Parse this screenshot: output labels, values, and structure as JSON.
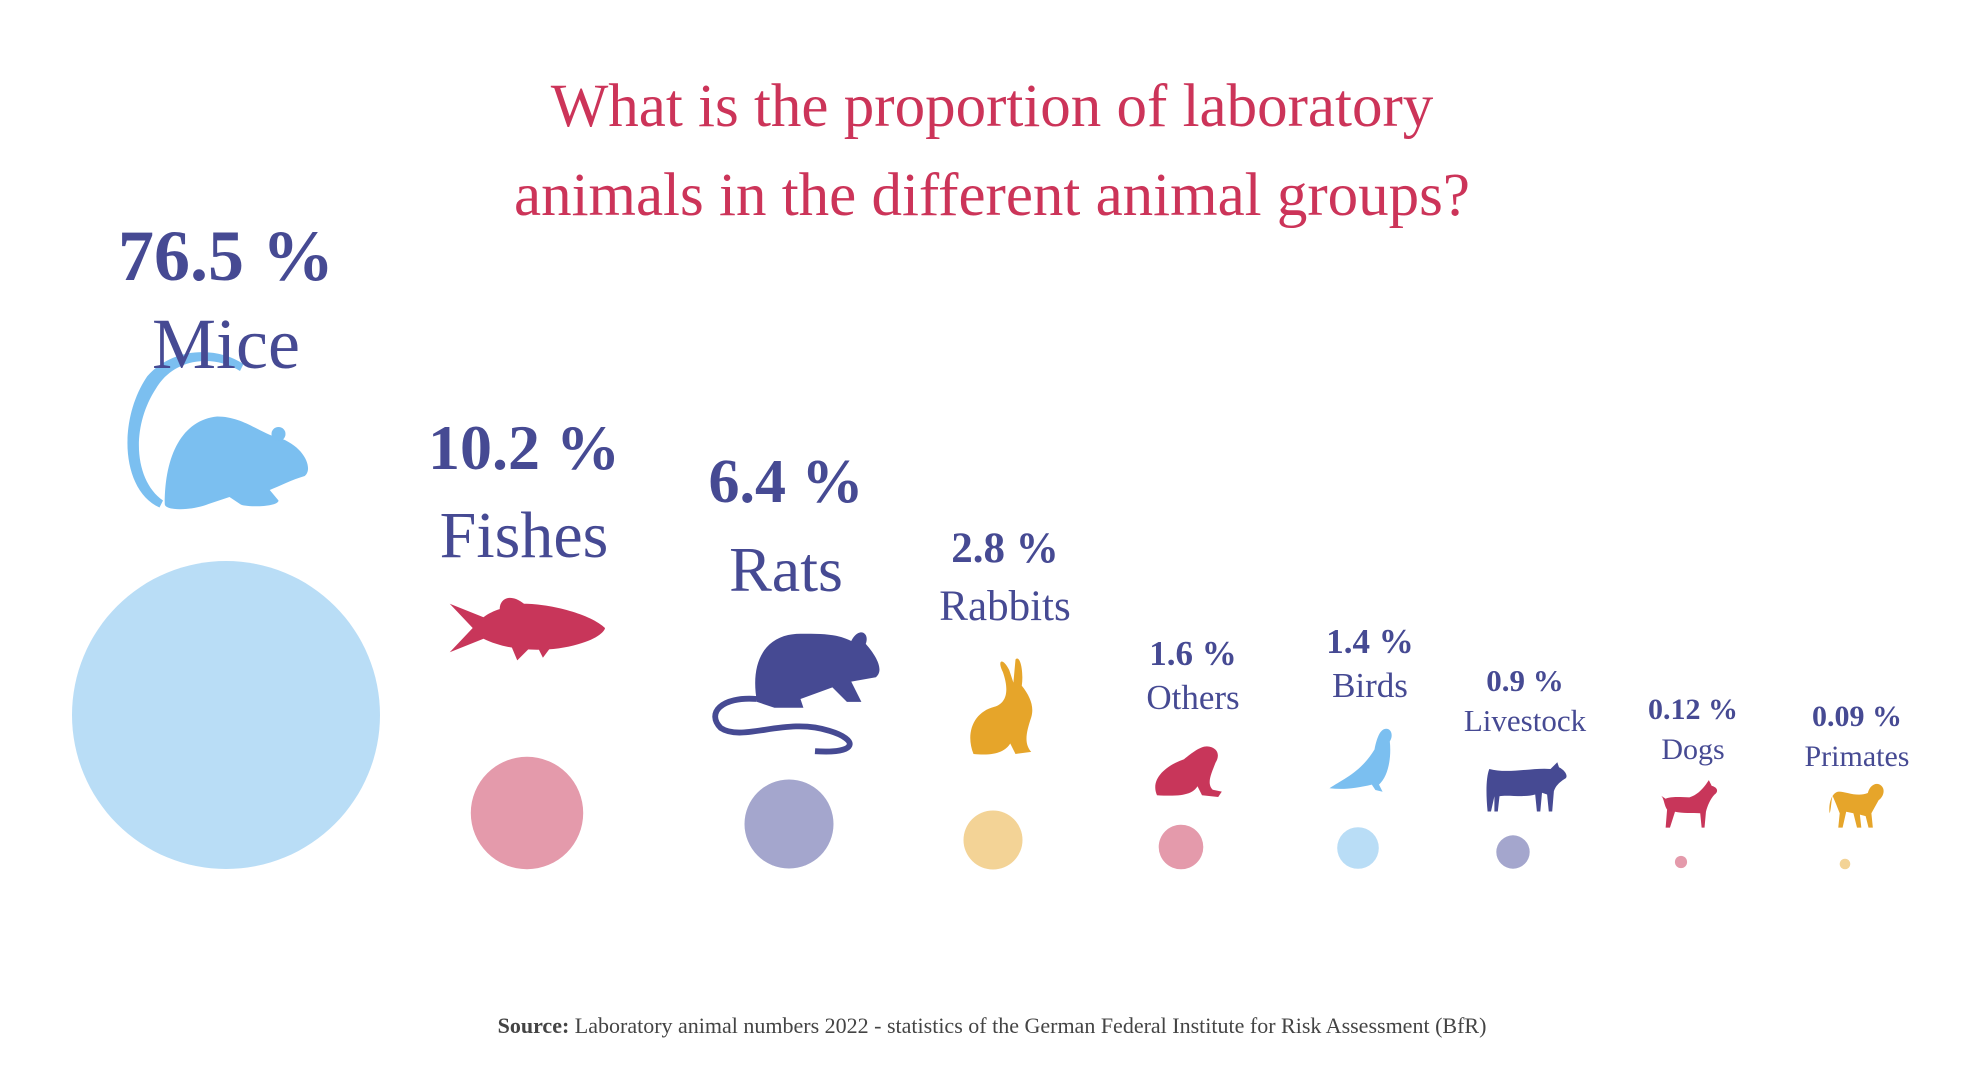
{
  "title": {
    "line1": "What is the proportion of laboratory",
    "line2": "animals in the different animal groups?"
  },
  "chart_data": {
    "type": "scatter",
    "title": "What is the proportion of laboratory animals in the different animal groups?",
    "unit": "%",
    "categories": [
      "Mice",
      "Fishes",
      "Rats",
      "Rabbits",
      "Others",
      "Birds",
      "Livestock",
      "Dogs",
      "Primates"
    ],
    "values": [
      76.5,
      10.2,
      6.4,
      2.8,
      1.6,
      1.4,
      0.9,
      0.12,
      0.09
    ],
    "labels": [
      "76.5 %",
      "10.2 %",
      "6.4 %",
      "2.8 %",
      "1.6 %",
      "1.4 %",
      "0.9 %",
      "0.12 %",
      "0.09 %"
    ],
    "icons": [
      "mouse-icon",
      "fish-icon",
      "rat-icon",
      "rabbit-icon",
      "frog-icon",
      "pigeon-icon",
      "cow-icon",
      "dog-icon",
      "monkey-icon"
    ],
    "icon_colors": [
      "#7bbff0",
      "#c8365a",
      "#464a93",
      "#e6a52a",
      "#c8365a",
      "#7bbff0",
      "#464a93",
      "#c8365a",
      "#e6a52a"
    ],
    "bubble_colors": [
      "#b9ddf6",
      "#e49aab",
      "#a4a6cd",
      "#f3d396",
      "#e49aab",
      "#b9ddf6",
      "#a4a6cd",
      "#e49aab",
      "#f3d396"
    ],
    "text_color": "#464a93",
    "title_color": "#cc3459"
  },
  "source": {
    "label": "Source:",
    "text": " Laboratory animal numbers 2022 - statistics of the German Federal Institute for Risk Assessment (BfR)"
  }
}
